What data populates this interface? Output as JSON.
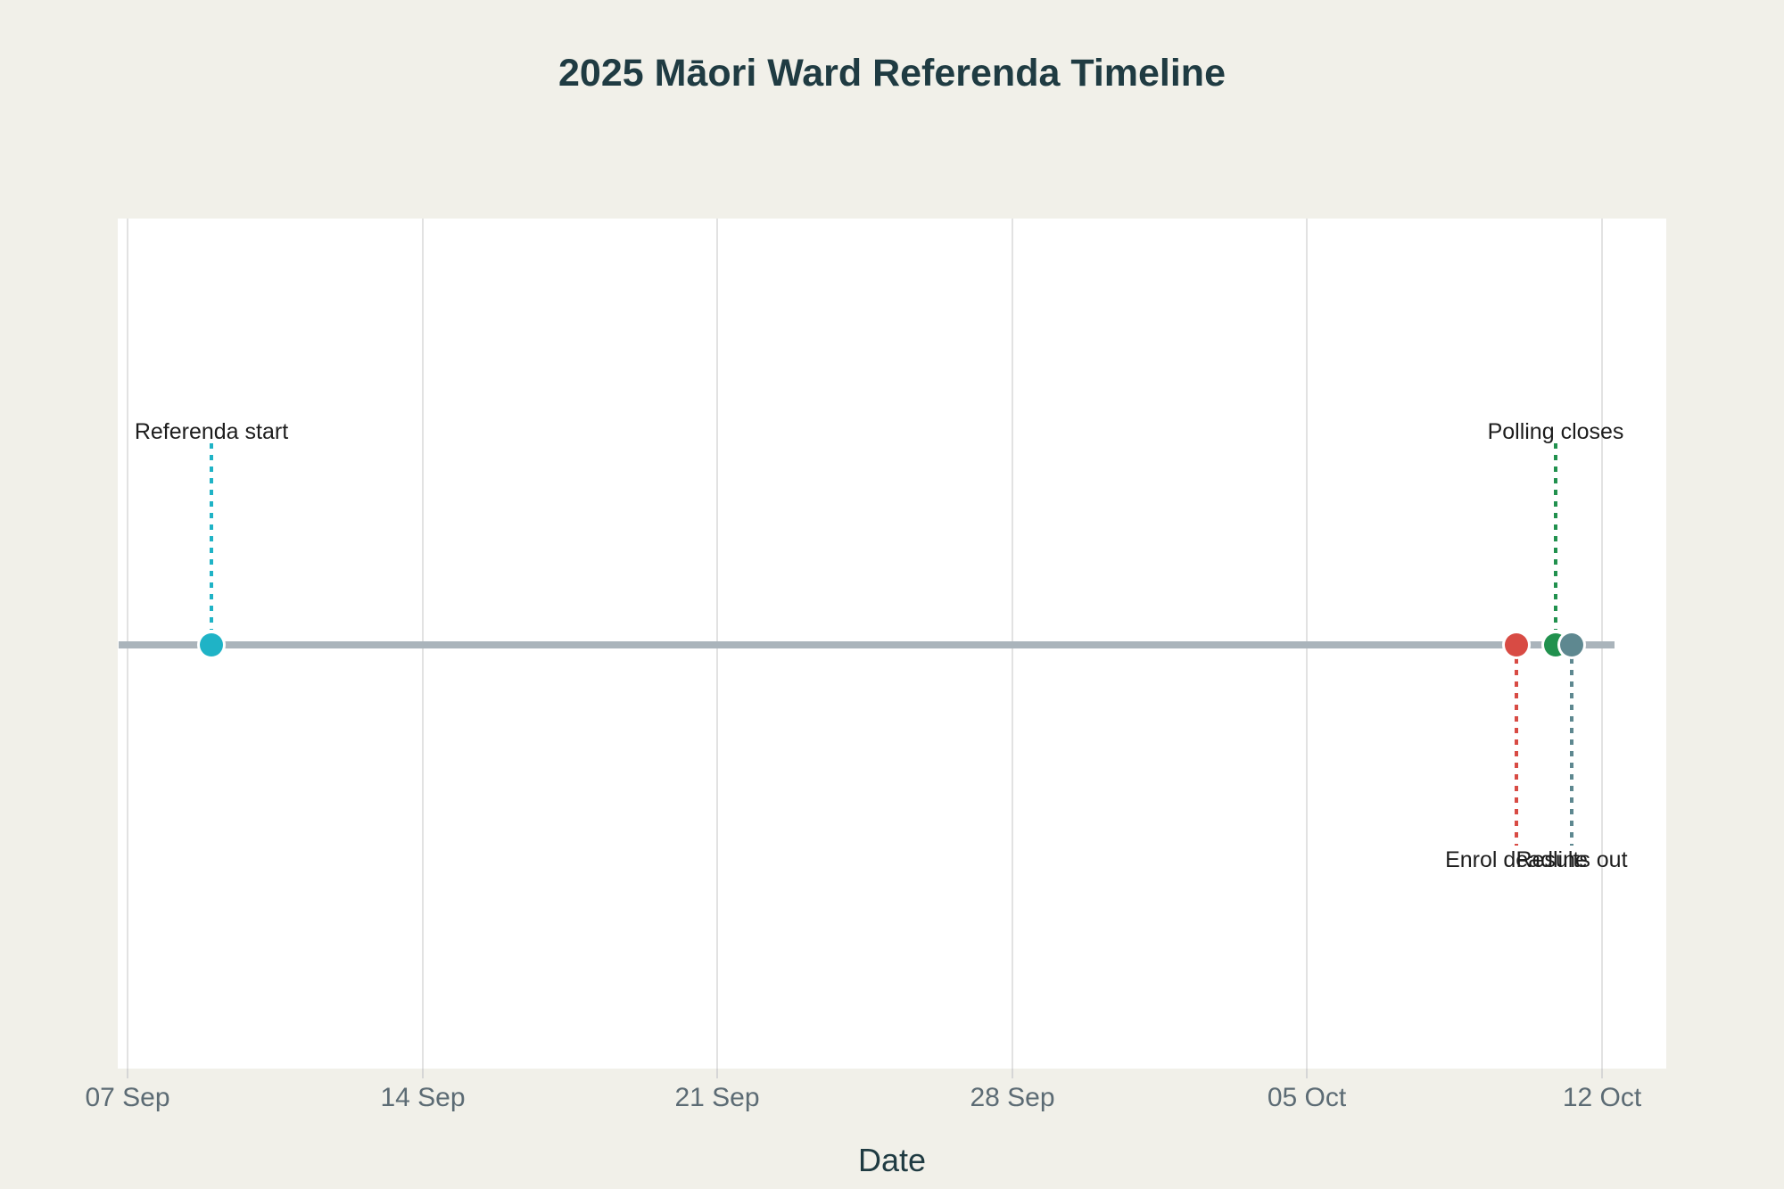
{
  "page": {
    "background_color": "#f1f0e9",
    "plot_background_color": "#ffffff"
  },
  "chart_data": {
    "type": "scatter",
    "subtype": "timeline",
    "title": "2025 Māori Ward Referenda Timeline",
    "xlabel": "Date",
    "x_tick_labels": [
      "07 Sep",
      "14 Sep",
      "21 Sep",
      "28 Sep",
      "05 Oct",
      "12 Oct"
    ],
    "x_range": [
      "2025-09-06",
      "2025-10-13"
    ],
    "grid": "vertical weekly gridlines, light gray",
    "legend": "none",
    "baseline": {
      "description": "horizontal timeline axis line",
      "color": "#aab4bb",
      "y": 0
    },
    "events": [
      {
        "label": "Referenda start",
        "date": "2025-09-09",
        "color": "#1fb3c6",
        "label_position": "above",
        "connector": "dotted vertical line"
      },
      {
        "label": "Enrol deadline",
        "date": "2025-10-10",
        "color": "#d84b44",
        "label_position": "below",
        "connector": "dotted vertical line"
      },
      {
        "label": "Polling closes",
        "date": "2025-10-11",
        "color": "#21914e",
        "label_position": "above",
        "connector": "dotted vertical line"
      },
      {
        "label": "Results out",
        "date": "2025-10-11",
        "color": "#5e8890",
        "label_position": "below",
        "connector": "dotted vertical line"
      }
    ],
    "colors": {
      "title_text": "#1f3b42",
      "tick_text": "#5c6b74",
      "annotation_text": "#1d1d1d",
      "gridline": "#e2e2e2"
    }
  }
}
